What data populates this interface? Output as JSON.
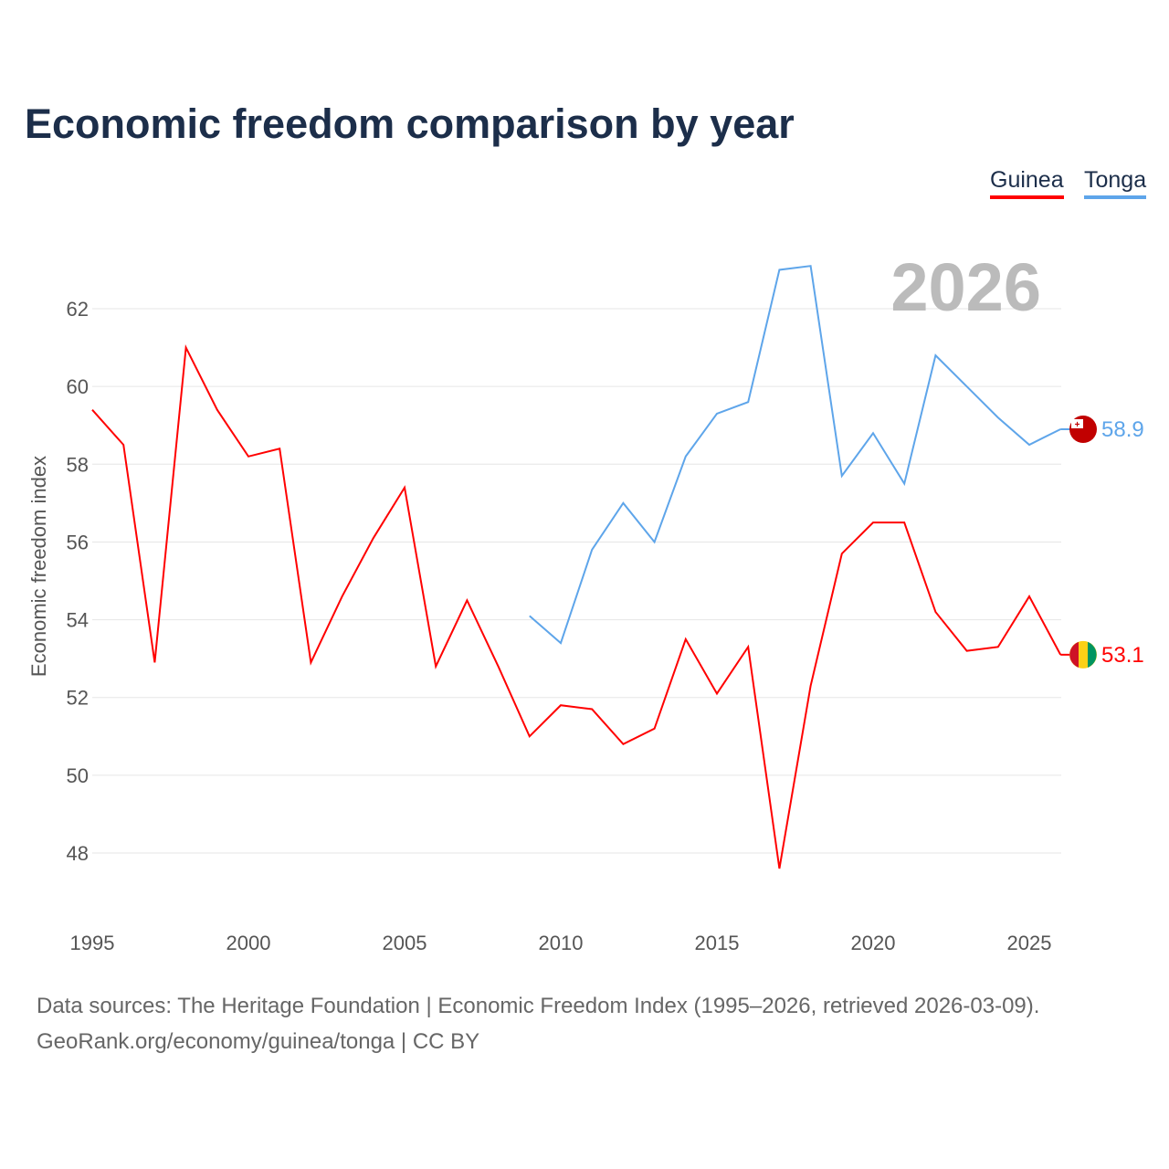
{
  "title": "Economic freedom comparison by year",
  "footer": {
    "line1": "Data sources: The Heritage Foundation | Economic Freedom Index (1995–2026, retrieved 2026-03-09).",
    "line2": "GeoRank.org/economy/guinea/tonga | CC BY"
  },
  "chart_data": {
    "type": "line",
    "title": "Economic freedom comparison by year",
    "xlabel": "",
    "ylabel": "Economic freedom index",
    "year_label": "2026",
    "xlim": [
      1995,
      2026
    ],
    "ylim": [
      46.5,
      64
    ],
    "xticks": [
      1995,
      2000,
      2005,
      2010,
      2015,
      2020,
      2025
    ],
    "yticks": [
      48,
      50,
      52,
      54,
      56,
      58,
      60,
      62
    ],
    "grid": true,
    "legend": "top-right",
    "series": [
      {
        "name": "Guinea",
        "color": "#ff0000",
        "end_label": "53.1",
        "x": [
          1995,
          1996,
          1997,
          1998,
          1999,
          2000,
          2001,
          2002,
          2003,
          2004,
          2005,
          2006,
          2007,
          2008,
          2009,
          2010,
          2011,
          2012,
          2013,
          2014,
          2015,
          2016,
          2017,
          2018,
          2019,
          2020,
          2021,
          2022,
          2023,
          2024,
          2025,
          2026
        ],
        "values": [
          59.4,
          58.5,
          52.9,
          61.0,
          59.4,
          58.2,
          58.4,
          52.9,
          54.6,
          56.1,
          57.4,
          52.8,
          54.5,
          52.8,
          51.0,
          51.8,
          51.7,
          50.8,
          51.2,
          53.5,
          52.1,
          53.3,
          47.6,
          52.3,
          55.7,
          56.5,
          56.5,
          54.2,
          53.2,
          53.3,
          54.6,
          53.1
        ]
      },
      {
        "name": "Tonga",
        "color": "#5ea5ea",
        "end_label": "58.9",
        "x": [
          2009,
          2010,
          2011,
          2012,
          2013,
          2014,
          2015,
          2016,
          2017,
          2018,
          2019,
          2020,
          2021,
          2022,
          2023,
          2024,
          2025,
          2026
        ],
        "values": [
          54.1,
          53.4,
          55.8,
          57.0,
          56.0,
          58.2,
          59.3,
          59.6,
          63.0,
          63.1,
          57.7,
          58.8,
          57.5,
          60.8,
          60.0,
          59.2,
          58.5,
          58.9
        ]
      }
    ]
  }
}
